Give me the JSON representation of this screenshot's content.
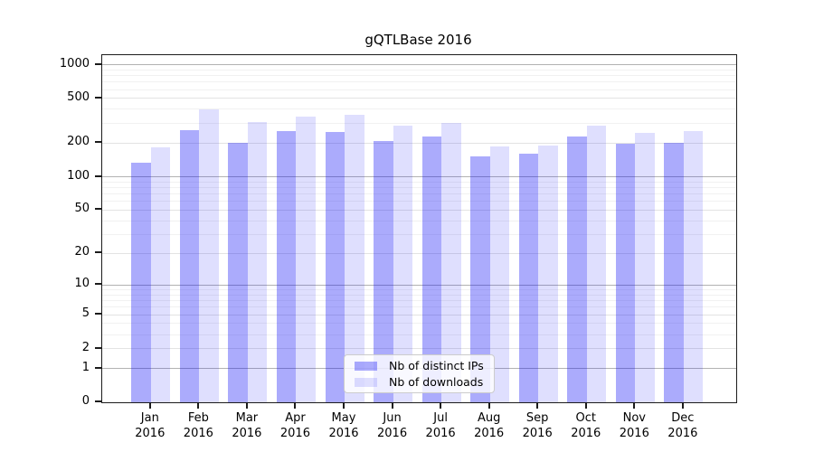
{
  "title": "gQTLBase 2016",
  "legend": {
    "items": [
      {
        "label": "Nb of distinct IPs",
        "color": "rgba(10,10,245,0.34)"
      },
      {
        "label": "Nb of downloads",
        "color": "rgba(10,10,245,0.13)"
      }
    ]
  },
  "axis": {
    "y_tick_labels": [
      "0",
      "1",
      "2",
      "5",
      "10",
      "20",
      "50",
      "100",
      "200",
      "500",
      "1000"
    ],
    "x_year_label": "2016"
  },
  "colors": {
    "series_ips": "rgba(10,10,245,0.34)",
    "series_downloads": "rgba(10,10,245,0.13)",
    "grid_decade": "#b2b2b2",
    "grid_labeled": "#e3e3e3",
    "grid_minor": "#f1f1f1",
    "spine": "#1c1c1c"
  },
  "chart_data": {
    "type": "bar",
    "title": "gQTLBase 2016",
    "categories": [
      "Jan",
      "Feb",
      "Mar",
      "Apr",
      "May",
      "Jun",
      "Jul",
      "Aug",
      "Sep",
      "Oct",
      "Nov",
      "Dec"
    ],
    "category_year": "2016",
    "series": [
      {
        "name": "Nb of distinct IPs",
        "values": [
          133,
          262,
          203,
          255,
          250,
          209,
          230,
          152,
          162,
          230,
          196,
          203
        ]
      },
      {
        "name": "Nb of downloads",
        "values": [
          185,
          398,
          310,
          346,
          358,
          286,
          305,
          186,
          190,
          288,
          246,
          255
        ]
      }
    ],
    "xlabel": "",
    "ylabel": "",
    "yscale": "log1p",
    "y_ticks": [
      0,
      1,
      2,
      5,
      10,
      20,
      50,
      100,
      200,
      500,
      1000
    ],
    "y_minor_gridlines": [
      3,
      4,
      6,
      7,
      8,
      9,
      30,
      40,
      60,
      70,
      80,
      90,
      300,
      400,
      600,
      700,
      800,
      900
    ],
    "y_decade_gridlines": [
      1,
      10,
      100,
      1000
    ],
    "ylim": [
      0,
      1215
    ],
    "grid": true,
    "legend_position": "inside-bottom-center"
  }
}
